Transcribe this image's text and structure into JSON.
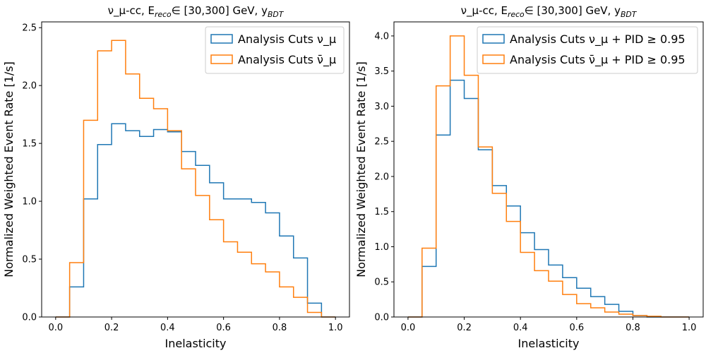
{
  "colors": {
    "blue": "#1f77b4",
    "orange": "#ff7f0e"
  },
  "chart_data": [
    {
      "type": "histogram-step",
      "title": "ν_μ-cc, E_reco∈ [30,300] GeV, y_BDT",
      "xlabel": "Inelasticity",
      "ylabel": "Normalized Weighted Event Rate [1/s]",
      "xlim": [
        -0.05,
        1.05
      ],
      "ylim": [
        0,
        2.55
      ],
      "x_ticks": [
        "0.0",
        "0.2",
        "0.4",
        "0.6",
        "0.8",
        "1.0"
      ],
      "y_ticks": [
        "0.0",
        "0.5",
        "1.0",
        "1.5",
        "2.0",
        "2.5"
      ],
      "legend_position": "top-right",
      "bin_edges": [
        0.0,
        0.05,
        0.1,
        0.15,
        0.2,
        0.25,
        0.3,
        0.35,
        0.4,
        0.45,
        0.5,
        0.55,
        0.6,
        0.65,
        0.7,
        0.75,
        0.8,
        0.85,
        0.9,
        0.95,
        1.0
      ],
      "series": [
        {
          "name": "Analysis Cuts ν_μ",
          "color": "#1f77b4",
          "values": [
            0.0,
            0.26,
            1.02,
            1.49,
            1.67,
            1.61,
            1.56,
            1.62,
            1.6,
            1.43,
            1.31,
            1.16,
            1.02,
            1.02,
            0.99,
            0.9,
            0.7,
            0.51,
            0.12,
            0.0
          ]
        },
        {
          "name": "Analysis Cuts ν̄_μ",
          "color": "#ff7f0e",
          "values": [
            0.0,
            0.47,
            1.7,
            2.3,
            2.39,
            2.1,
            1.89,
            1.8,
            1.61,
            1.28,
            1.05,
            0.84,
            0.65,
            0.56,
            0.46,
            0.39,
            0.26,
            0.17,
            0.04,
            0.0
          ]
        }
      ]
    },
    {
      "type": "histogram-step",
      "title": "ν_μ-cc, E_reco∈ [30,300] GeV, y_BDT",
      "xlabel": "Inelasticity",
      "ylabel": "Normalized Weighted Event Rate [1/s]",
      "xlim": [
        -0.05,
        1.05
      ],
      "ylim": [
        0,
        4.2
      ],
      "x_ticks": [
        "0.0",
        "0.2",
        "0.4",
        "0.6",
        "0.8",
        "1.0"
      ],
      "y_ticks": [
        "0.0",
        "0.5",
        "1.0",
        "1.5",
        "2.0",
        "2.5",
        "3.0",
        "3.5",
        "4.0"
      ],
      "legend_position": "top-right",
      "bin_edges": [
        0.0,
        0.05,
        0.1,
        0.15,
        0.2,
        0.25,
        0.3,
        0.35,
        0.4,
        0.45,
        0.5,
        0.55,
        0.6,
        0.65,
        0.7,
        0.75,
        0.8,
        0.85,
        0.9,
        0.95,
        1.0
      ],
      "series": [
        {
          "name": "Analysis Cuts ν_μ + PID ≥ 0.95",
          "color": "#1f77b4",
          "values": [
            0.0,
            0.72,
            2.59,
            3.37,
            3.11,
            2.38,
            1.87,
            1.58,
            1.2,
            0.96,
            0.74,
            0.56,
            0.41,
            0.29,
            0.18,
            0.08,
            0.02,
            0.0,
            0.0,
            0.0
          ]
        },
        {
          "name": "Analysis Cuts ν̄_μ + PID ≥ 0.95",
          "color": "#ff7f0e",
          "values": [
            0.0,
            0.98,
            3.29,
            4.0,
            3.44,
            2.42,
            1.76,
            1.36,
            0.92,
            0.66,
            0.51,
            0.32,
            0.19,
            0.13,
            0.07,
            0.04,
            0.02,
            0.01,
            0.0,
            0.0
          ]
        }
      ]
    }
  ]
}
